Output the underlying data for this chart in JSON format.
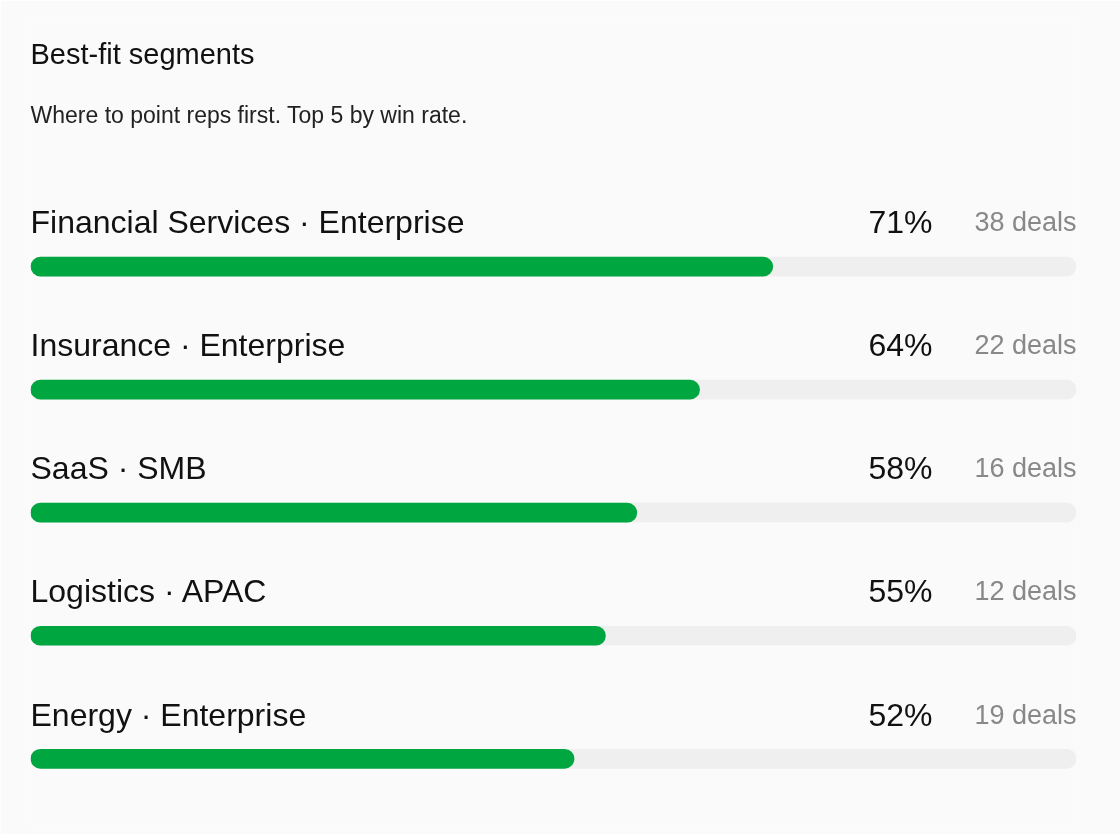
{
  "chart_data": {
    "type": "bar",
    "orientation": "horizontal",
    "title": "Best-fit segments",
    "subtitle": "Where to point reps first. Top 5 by win rate.",
    "categories": [
      "Financial Services · Enterprise",
      "Insurance · Enterprise",
      "SaaS · SMB",
      "Logistics · APAC",
      "Energy · Enterprise"
    ],
    "values": [
      71,
      64,
      58,
      55,
      52
    ],
    "value_labels": [
      "71%",
      "64%",
      "58%",
      "55%",
      "52%"
    ],
    "color": "#00a640",
    "xlim": [
      0,
      100
    ],
    "tick_labels": false,
    "annotations": [
      "38 deals",
      "22 deals",
      "16 deals",
      "12 deals",
      "19 deals"
    ]
  }
}
